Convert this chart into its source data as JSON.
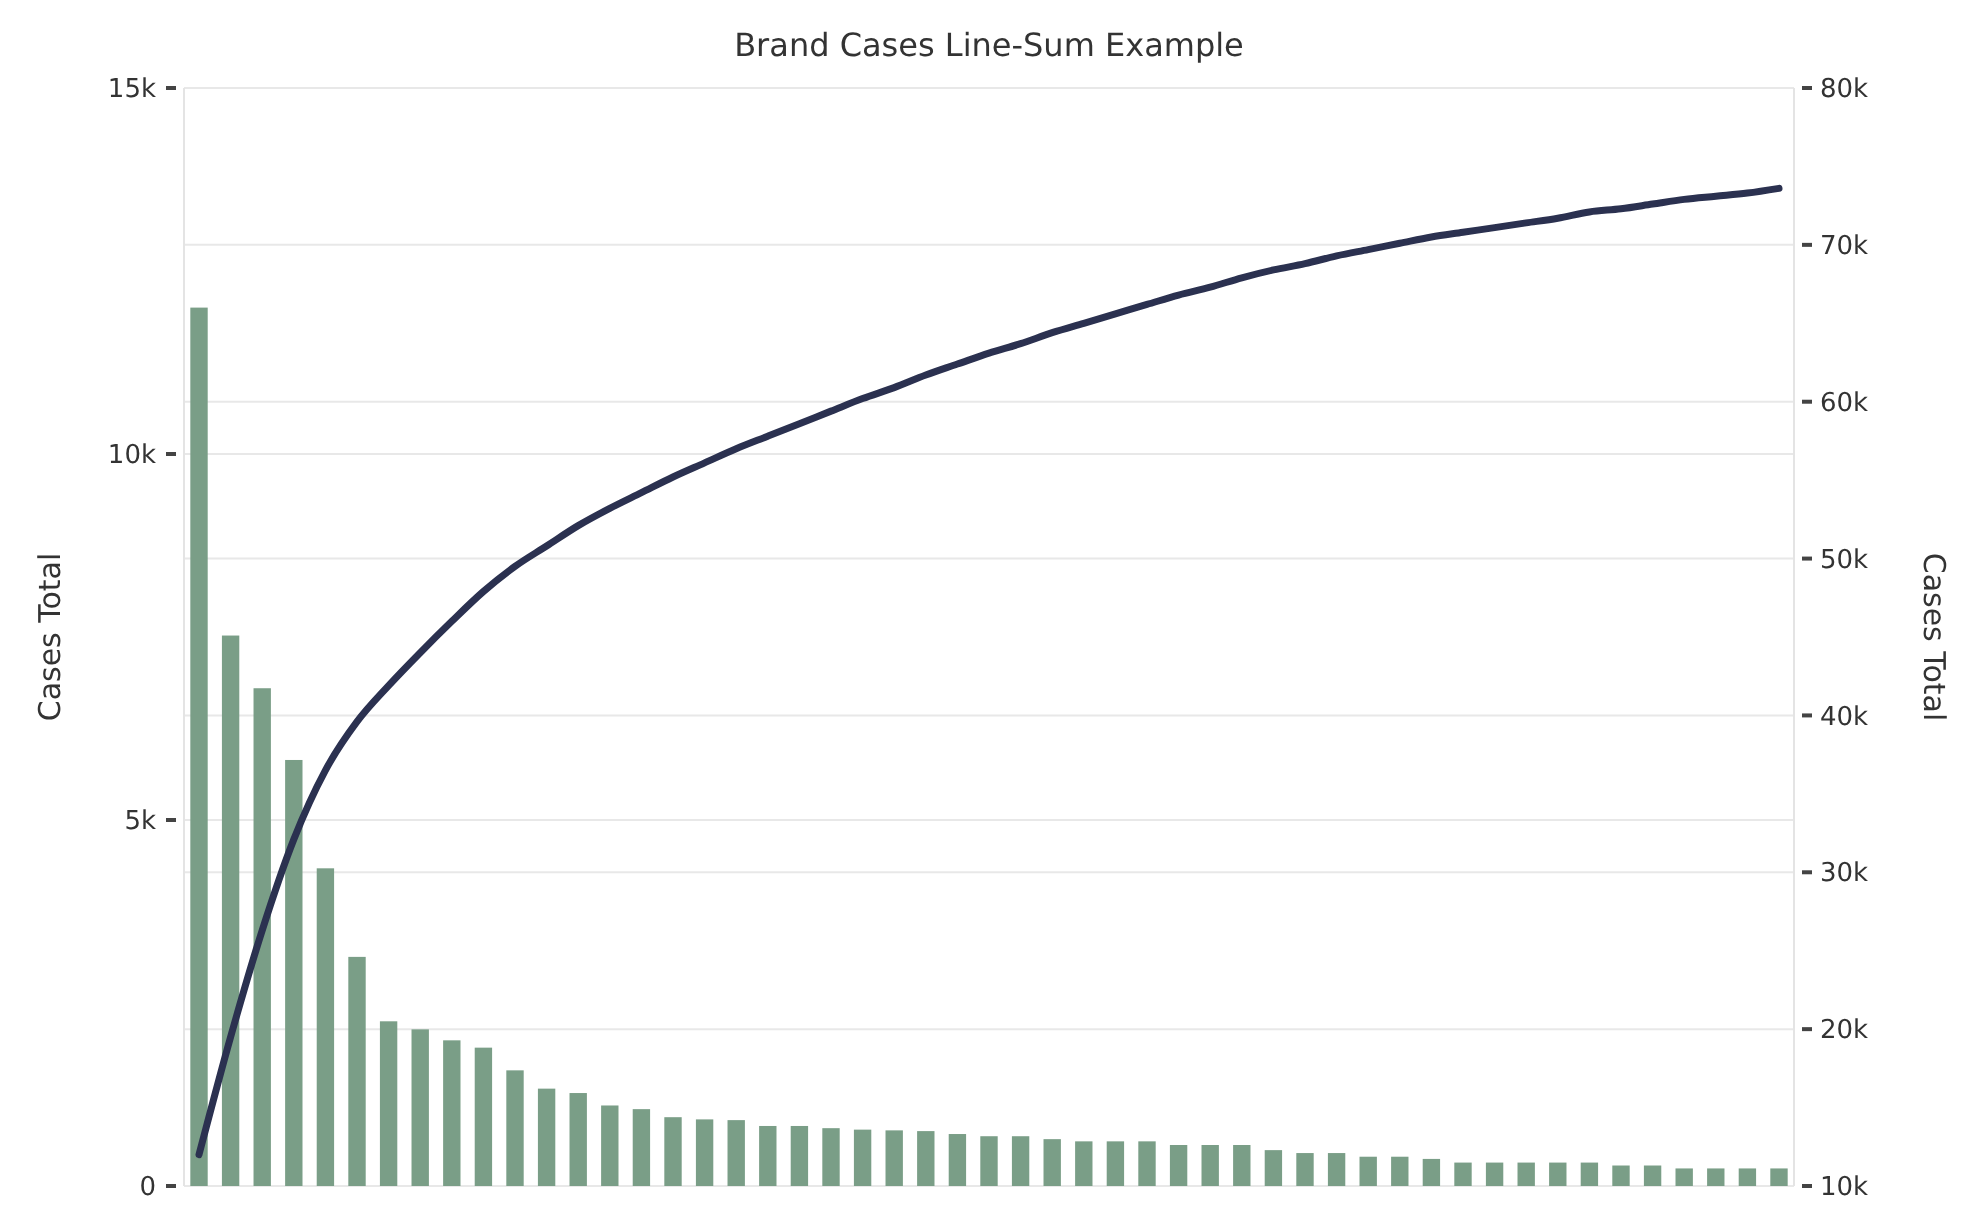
{
  "chart_data": {
    "type": "bar",
    "title": "Brand Cases Line-Sum Example",
    "ylabel": "Cases Total",
    "y2label": "Cases Total",
    "categories": [
      null,
      null,
      null,
      null,
      null,
      null,
      null,
      null,
      null,
      null,
      null,
      null,
      null,
      null,
      null,
      null,
      null,
      null,
      null,
      null,
      null,
      null,
      null,
      null,
      null,
      null,
      null,
      null,
      null,
      null,
      null,
      null,
      null,
      null,
      null,
      null,
      null,
      null,
      null,
      null,
      null,
      null,
      null,
      null,
      null,
      null,
      null,
      null,
      null,
      null,
      null
    ],
    "series": [
      {
        "color": "#7a9e87",
        "values": [
          12000,
          7520,
          6800,
          5820,
          4340,
          3130,
          2250,
          2140,
          1990,
          1890,
          1580,
          1330,
          1270,
          1100,
          1050,
          940,
          910,
          900,
          820,
          820,
          790,
          770,
          760,
          750,
          710,
          680,
          680,
          640,
          610,
          610,
          610,
          560,
          560,
          560,
          490,
          450,
          450,
          400,
          400,
          370,
          320,
          320,
          320,
          320,
          320,
          280,
          280,
          240,
          240,
          240,
          240
        ]
      },
      {
        "type": "line",
        "axis": "y2",
        "color": "#2b3150",
        "values": [
          12000,
          19500,
          26300,
          32100,
          36500,
          39600,
          41900,
          44000,
          46000,
          47900,
          49500,
          50800,
          52100,
          53200,
          54200,
          55200,
          56100,
          57000,
          57800,
          58600,
          59400,
          60200,
          60900,
          61700,
          62400,
          63100,
          63700,
          64400,
          65000,
          65600,
          66200,
          66800,
          67300,
          67900,
          68400,
          68800,
          69300,
          69700,
          70100,
          70500,
          70800,
          71100,
          71400,
          71700,
          72100,
          72300,
          72600,
          72900,
          73100,
          73300,
          73600
        ]
      }
    ],
    "ylim": [
      0,
      15000
    ],
    "yticks": [
      {
        "value": 0,
        "label": "0"
      },
      {
        "value": 5000,
        "label": "5k"
      },
      {
        "value": 10000,
        "label": "10k"
      },
      {
        "value": 15000,
        "label": "15k"
      }
    ],
    "y2lim": [
      10000,
      80000
    ],
    "y2ticks": [
      {
        "value": 10000,
        "label": "10k"
      },
      {
        "value": 20000,
        "label": "20k"
      },
      {
        "value": 30000,
        "label": "30k"
      },
      {
        "value": 40000,
        "label": "40k"
      },
      {
        "value": 50000,
        "label": "50k"
      },
      {
        "value": 60000,
        "label": "60k"
      },
      {
        "value": 70000,
        "label": "70k"
      },
      {
        "value": 80000,
        "label": "80k"
      }
    ],
    "grid": true,
    "line_style": "solid",
    "marker": "none"
  }
}
